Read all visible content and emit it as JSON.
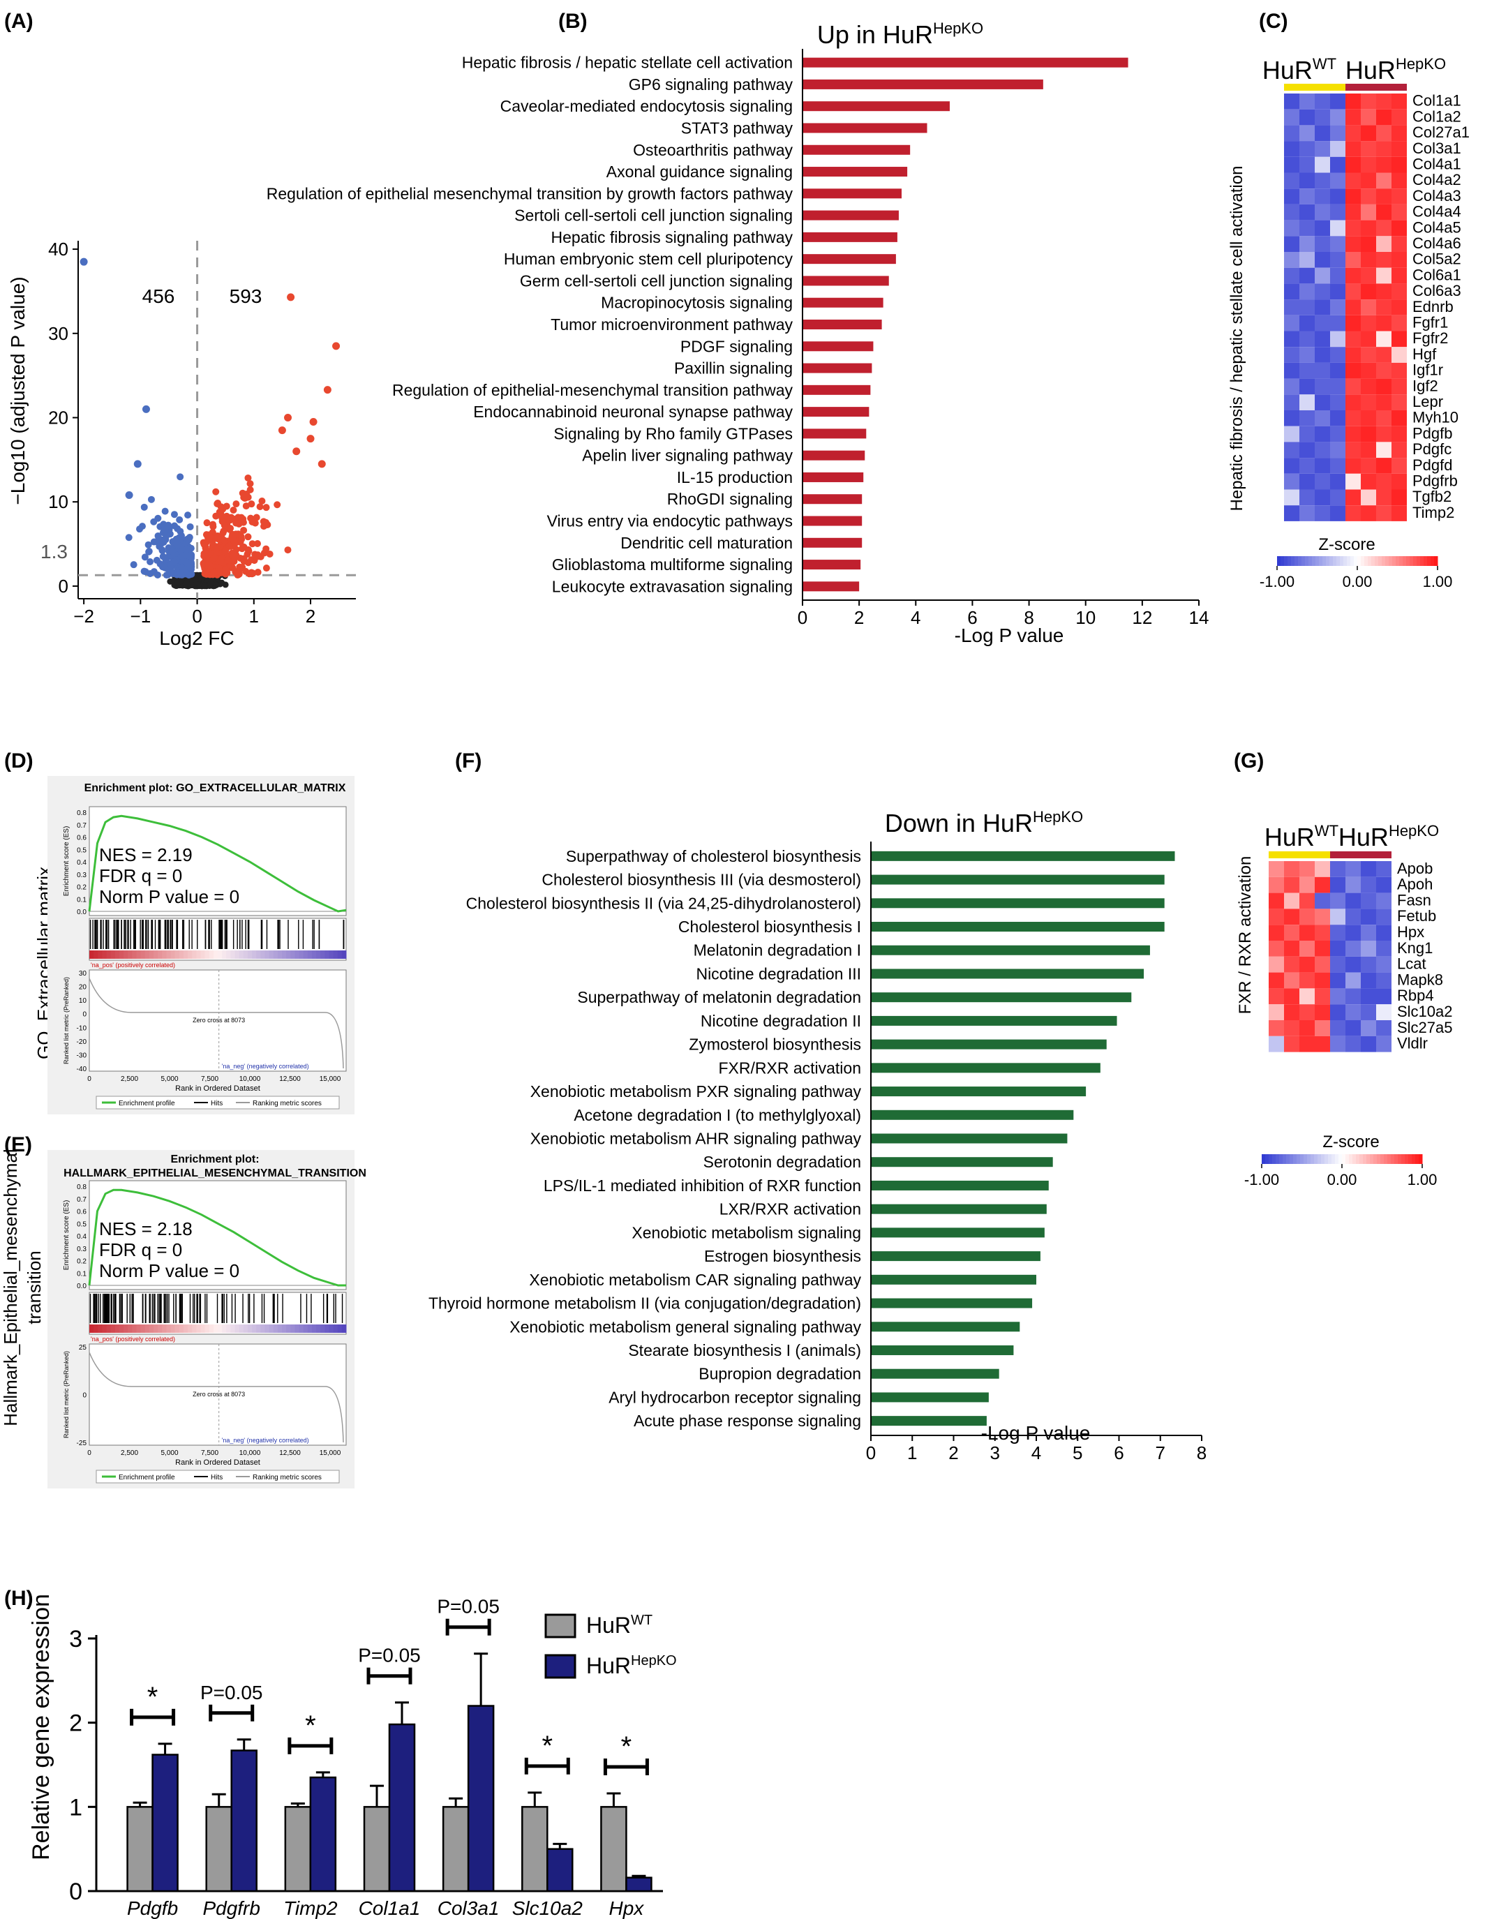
{
  "colors": {
    "up_bar": "#C0202E",
    "down_bar": "#1F6B35",
    "volcano_up": "#E8482F",
    "volcano_down": "#4A6EC0",
    "volcano_ns": "#222222",
    "gsea_green": "#3DBE3A",
    "wt_bar": "#9A9A9A",
    "ko_bar": "#1D1F7E",
    "wt_group": "#F5E000",
    "ko_group": "#B3203A"
  },
  "panel_labels": [
    "(A)",
    "(B)",
    "(C)",
    "(D)",
    "(E)",
    "(F)",
    "(G)",
    "(H)"
  ],
  "chart_data": [
    {
      "id": "A",
      "type": "scatter",
      "xlabel": "Log2 FC",
      "ylabel": "−Log10 (adjusted P value)",
      "xlim": [
        -2.1,
        2.8
      ],
      "ylim": [
        -1.5,
        41
      ],
      "xticks": [
        "−2",
        "−1",
        "0",
        "1",
        "2"
      ],
      "yticks": [
        "0",
        "10",
        "20",
        "30",
        "40"
      ],
      "threshold_label": "1.3",
      "count_down": "456",
      "count_up": "593",
      "outliers_down": [
        [
          -2.0,
          38.5
        ],
        [
          -0.9,
          21
        ],
        [
          -1.05,
          14.5
        ],
        [
          -1.2,
          10.8
        ]
      ],
      "outliers_up": [
        [
          1.65,
          34.3
        ],
        [
          2.45,
          28.5
        ],
        [
          2.3,
          23.3
        ],
        [
          1.6,
          20.0
        ],
        [
          2.05,
          19.5
        ],
        [
          1.5,
          18.5
        ],
        [
          2.0,
          17.5
        ],
        [
          1.75,
          16.0
        ],
        [
          2.2,
          14.5
        ]
      ]
    },
    {
      "id": "B",
      "type": "bar",
      "orientation": "horizontal",
      "title_main": "Up in HuR",
      "title_sup": "HepKO",
      "xlabel": "-Log P value",
      "xlim": [
        0,
        14
      ],
      "xticks": [
        "0",
        "2",
        "4",
        "6",
        "8",
        "10",
        "12",
        "14"
      ],
      "categories": [
        "Hepatic fibrosis / hepatic stellate cell activation",
        "GP6 signaling pathway",
        "Caveolar-mediated endocytosis signaling",
        "STAT3 pathway",
        "Osteoarthritis pathway",
        "Axonal guidance signaling",
        "Regulation of epithelial mesenchymal transition by growth factors pathway",
        "Sertoli cell-sertoli cell junction signaling",
        "Hepatic fibrosis signaling pathway",
        "Human embryonic stem cell pluripotency",
        "Germ cell-sertoli cell junction signaling",
        "Macropinocytosis signaling",
        "Tumor microenvironment pathway",
        "PDGF signaling",
        "Paxillin signaling",
        "Regulation of epithelial-mesenchymal transition pathway",
        "Endocannabinoid neuronal synapse pathway",
        "Signaling by Rho family GTPases",
        "Apelin liver signaling pathway",
        "IL-15 production",
        "RhoGDI signaling",
        "Virus entry via endocytic pathways",
        "Dendritic cell maturation",
        "Glioblastoma multiforme signaling",
        "Leukocyte extravasation signaling"
      ],
      "values": [
        11.5,
        8.5,
        5.2,
        4.4,
        3.8,
        3.7,
        3.5,
        3.4,
        3.35,
        3.3,
        3.05,
        2.85,
        2.8,
        2.5,
        2.45,
        2.4,
        2.35,
        2.25,
        2.2,
        2.15,
        2.1,
        2.1,
        2.1,
        2.05,
        2.0
      ]
    },
    {
      "id": "F",
      "type": "bar",
      "orientation": "horizontal",
      "title_main": "Down in HuR",
      "title_sup": "HepKO",
      "xlabel": "-Log P value",
      "xlim": [
        0,
        8
      ],
      "xticks": [
        "0",
        "1",
        "2",
        "3",
        "4",
        "5",
        "6",
        "7",
        "8"
      ],
      "categories": [
        "Superpathway of cholesterol biosynthesis",
        "Cholesterol biosynthesis III (via desmosterol)",
        "Cholesterol biosynthesis II (via 24,25-dihydrolanosterol)",
        "Cholesterol biosynthesis I",
        "Melatonin degradation I",
        "Nicotine degradation III",
        "Superpathway of melatonin degradation",
        "Nicotine degradation II",
        "Zymosterol biosynthesis",
        "FXR/RXR activation",
        "Xenobiotic metabolism PXR signaling pathway",
        "Acetone degradation I (to methylglyoxal)",
        "Xenobiotic metabolism AHR signaling pathway",
        "Serotonin degradation",
        "LPS/IL-1 mediated inhibition of RXR function",
        "LXR/RXR activation",
        "Xenobiotic metabolism signaling",
        "Estrogen biosynthesis",
        "Xenobiotic metabolism CAR signaling pathway",
        "Thyroid hormone metabolism II (via conjugation/degradation)",
        "Xenobiotic metabolism general signaling pathway",
        "Stearate biosynthesis I (animals)",
        "Bupropion degradation",
        "Aryl hydrocarbon receptor signaling",
        "Acute phase response signaling"
      ],
      "values": [
        7.35,
        7.1,
        7.1,
        7.1,
        6.75,
        6.6,
        6.3,
        5.95,
        5.7,
        5.55,
        5.2,
        4.9,
        4.75,
        4.4,
        4.3,
        4.25,
        4.2,
        4.1,
        4.0,
        3.9,
        3.6,
        3.45,
        3.1,
        2.85,
        2.8
      ]
    },
    {
      "id": "C",
      "type": "heatmap",
      "group_wt_main": "HuR",
      "group_wt_sup": "WT",
      "group_ko_main": "HuR",
      "group_ko_sup": "HepKO",
      "side_label": "Hepatic fibrosis / hepatic stellate cell activation",
      "legend_title": "Z-score",
      "legend_ticks": [
        "-1.00",
        "0.00",
        "1.00"
      ],
      "genes": [
        "Col1a1",
        "Col1a2",
        "Col27a1",
        "Col3a1",
        "Col4a1",
        "Col4a2",
        "Col4a3",
        "Col4a4",
        "Col4a5",
        "Col4a6",
        "Col5a2",
        "Col6a1",
        "Col6a3",
        "Ednrb",
        "Fgfr1",
        "Fgfr2",
        "Hgf",
        "Igf1r",
        "Igf2",
        "Lepr",
        "Myh10",
        "Pdgfb",
        "Pdgfc",
        "Pdgfd",
        "Pdgfrb",
        "Tgfb2",
        "Timp2"
      ],
      "z": [
        [
          -0.9,
          -0.7,
          -0.8,
          -0.9,
          0.95,
          0.8,
          0.85,
          0.9
        ],
        [
          -0.7,
          -0.9,
          -0.8,
          -0.6,
          0.9,
          0.7,
          0.95,
          0.85
        ],
        [
          -0.8,
          -0.6,
          -0.9,
          -0.7,
          0.85,
          0.95,
          0.75,
          0.9
        ],
        [
          -0.9,
          -0.8,
          -0.7,
          -0.3,
          0.9,
          0.8,
          0.85,
          0.9
        ],
        [
          -0.9,
          -0.8,
          -0.2,
          -0.9,
          0.95,
          0.85,
          0.9,
          0.95
        ],
        [
          -0.8,
          -0.9,
          -0.8,
          -0.7,
          0.85,
          0.9,
          0.6,
          0.9
        ],
        [
          -0.9,
          -0.7,
          -0.8,
          -0.9,
          0.95,
          0.8,
          0.9,
          0.85
        ],
        [
          -0.8,
          -0.9,
          -0.7,
          -0.8,
          0.9,
          0.6,
          0.95,
          0.8
        ],
        [
          -0.7,
          -0.8,
          -0.9,
          -0.2,
          0.85,
          0.9,
          0.8,
          0.95
        ],
        [
          -0.9,
          -0.6,
          -0.8,
          -0.7,
          0.9,
          0.95,
          0.3,
          0.85
        ],
        [
          -0.6,
          -0.4,
          -0.9,
          -0.8,
          0.7,
          0.9,
          0.85,
          0.9
        ],
        [
          -0.8,
          -0.9,
          -0.5,
          -0.8,
          0.9,
          0.85,
          0.2,
          0.9
        ],
        [
          -0.9,
          -0.7,
          -0.8,
          -0.9,
          0.8,
          0.95,
          0.9,
          0.85
        ],
        [
          -0.8,
          -0.8,
          -0.9,
          -0.7,
          0.9,
          0.7,
          0.85,
          0.9
        ],
        [
          -0.7,
          -0.9,
          -0.8,
          -0.8,
          0.95,
          0.85,
          0.9,
          0.8
        ],
        [
          -0.9,
          -0.8,
          -0.9,
          -0.3,
          0.85,
          0.9,
          0.1,
          0.95
        ],
        [
          -0.8,
          -0.7,
          -0.9,
          -0.8,
          0.9,
          0.8,
          0.85,
          0.2
        ],
        [
          -0.9,
          -0.8,
          -0.8,
          -0.9,
          0.95,
          0.9,
          0.8,
          0.85
        ],
        [
          -0.7,
          -0.9,
          -0.8,
          -0.8,
          0.8,
          0.9,
          0.95,
          0.85
        ],
        [
          -0.8,
          -0.2,
          -0.9,
          -0.8,
          0.9,
          0.85,
          0.9,
          0.8
        ],
        [
          -0.9,
          -0.8,
          -0.7,
          -0.9,
          0.85,
          0.9,
          0.8,
          0.95
        ],
        [
          -0.3,
          -0.8,
          -0.9,
          -0.8,
          0.9,
          0.95,
          0.85,
          0.9
        ],
        [
          -0.8,
          -0.9,
          -0.8,
          -0.7,
          0.85,
          0.9,
          0.1,
          0.85
        ],
        [
          -0.9,
          -0.8,
          -0.9,
          -0.8,
          0.9,
          0.85,
          0.95,
          0.8
        ],
        [
          -0.7,
          -0.9,
          -0.8,
          -0.9,
          0.1,
          0.9,
          0.85,
          0.9
        ],
        [
          -0.2,
          -0.8,
          -0.9,
          -0.8,
          0.9,
          0.2,
          0.85,
          0.95
        ],
        [
          -0.9,
          -0.7,
          -0.8,
          -0.9,
          0.85,
          0.9,
          0.8,
          0.9
        ]
      ]
    },
    {
      "id": "G",
      "type": "heatmap",
      "group_wt_main": "HuR",
      "group_wt_sup": "WT",
      "group_ko_main": "HuR",
      "group_ko_sup": "HepKO",
      "side_label": "FXR / RXR activation",
      "legend_title": "Z-score",
      "legend_ticks": [
        "-1.00",
        "0.00",
        "1.00"
      ],
      "genes": [
        "Apob",
        "Apoh",
        "Fasn",
        "Fetub",
        "Hpx",
        "Kng1",
        "Lcat",
        "Mapk8",
        "Rbp4",
        "Slc10a2",
        "Slc27a5",
        "Vldlr"
      ],
      "z": [
        [
          0.5,
          0.7,
          0.6,
          0.3,
          -0.8,
          -0.7,
          -0.9,
          -0.8
        ],
        [
          0.6,
          0.8,
          0.5,
          0.9,
          -0.9,
          -0.6,
          -0.8,
          -0.9
        ],
        [
          0.9,
          0.3,
          0.8,
          -0.8,
          -0.7,
          -0.9,
          -0.8,
          -0.7
        ],
        [
          0.8,
          0.9,
          0.7,
          0.6,
          -0.3,
          -0.8,
          -0.9,
          -0.8
        ],
        [
          0.9,
          0.7,
          0.9,
          0.8,
          -0.8,
          -0.9,
          -0.7,
          -0.9
        ],
        [
          0.7,
          0.9,
          0.6,
          0.9,
          -0.9,
          -0.7,
          -0.5,
          -0.8
        ],
        [
          0.4,
          0.8,
          0.9,
          0.7,
          -0.8,
          -0.9,
          -0.8,
          -0.7
        ],
        [
          0.9,
          0.6,
          0.8,
          0.9,
          -0.9,
          -0.5,
          -0.9,
          -0.8
        ],
        [
          0.8,
          0.9,
          0.2,
          0.8,
          -0.7,
          -0.8,
          -0.9,
          -0.9
        ],
        [
          0.3,
          0.9,
          0.8,
          0.9,
          -0.9,
          -0.7,
          -0.8,
          -0.1
        ],
        [
          0.7,
          0.8,
          0.9,
          0.6,
          -0.8,
          -0.9,
          -0.6,
          -0.8
        ],
        [
          -0.3,
          0.8,
          0.9,
          0.9,
          -0.7,
          -0.8,
          -0.9,
          -0.7
        ]
      ]
    },
    {
      "id": "D",
      "type": "line",
      "title": "Enrichment plot: GO_EXTRACELLULAR_MATRIX",
      "side_label": "GO_Extracellular matrix",
      "stats": [
        "NES = 2.19",
        "FDR q = 0",
        "Norm P value = 0"
      ],
      "ylabel_es": "Enrichment score (ES)",
      "ylabel_rank": "Ranked list metric (PreRanked)",
      "xlabel": "Rank in Ordered Dataset",
      "pos_label": "'na_pos' (positively correlated)",
      "neg_label": "'na_neg' (negatively correlated)",
      "zero_cross": "Zero cross at 8073",
      "legend": [
        "Enrichment profile",
        "Hits",
        "Ranking metric scores"
      ],
      "es_ticks": [
        "0.8",
        "0.7",
        "0.6",
        "0.5",
        "0.4",
        "0.3",
        "0.2",
        "0.1",
        "0.0"
      ],
      "rank_ticks": [
        "30",
        "20",
        "10",
        "0",
        "-10",
        "-20",
        "-30",
        "-40"
      ],
      "x_ticks": [
        "0",
        "2,500",
        "5,000",
        "7,500",
        "10,000",
        "12,500",
        "15,000"
      ],
      "es_x": [
        0,
        500,
        1000,
        1500,
        2000,
        3000,
        4000,
        5000,
        6000,
        7000,
        8000,
        9000,
        10000,
        11000,
        12000,
        13000,
        14000,
        15000,
        15500,
        16000
      ],
      "es_y": [
        0.0,
        0.55,
        0.72,
        0.76,
        0.77,
        0.75,
        0.72,
        0.69,
        0.65,
        0.6,
        0.54,
        0.47,
        0.4,
        0.32,
        0.24,
        0.16,
        0.09,
        0.03,
        0.0,
        0.01
      ],
      "hits_density": [
        1,
        1,
        1,
        0.9,
        0.8,
        0.7,
        0.6,
        0.55,
        0.5,
        0.45,
        0.4,
        0.35,
        0.3,
        0.25,
        0.2,
        0.15
      ]
    },
    {
      "id": "E",
      "type": "line",
      "title": "Enrichment plot:",
      "title2": "HALLMARK_EPITHELIAL_MESENCHYMAL_TRANSITION",
      "side_label": "Hallmark_Epithelial_mesenchymal",
      "side_label2": "transition",
      "stats": [
        "NES = 2.18",
        "FDR q = 0",
        "Norm P value = 0"
      ],
      "ylabel_es": "Enrichment score (ES)",
      "ylabel_rank": "Ranked list metric (PreRanked)",
      "xlabel": "Rank in Ordered Dataset",
      "pos_label": "'na_pos' (positively correlated)",
      "neg_label": "'na_neg' (negatively correlated)",
      "zero_cross": "Zero cross at 8073",
      "legend": [
        "Enrichment profile",
        "Hits",
        "Ranking metric scores"
      ],
      "es_ticks": [
        "0.8",
        "0.7",
        "0.6",
        "0.5",
        "0.4",
        "0.3",
        "0.2",
        "0.1",
        "0.0"
      ],
      "rank_ticks": [
        "25",
        "0",
        "-25"
      ],
      "x_ticks": [
        "0",
        "2,500",
        "5,000",
        "7,500",
        "10,000",
        "12,500",
        "15,000"
      ],
      "es_x": [
        0,
        500,
        1000,
        1500,
        2000,
        3000,
        4000,
        5000,
        6000,
        7000,
        8000,
        9000,
        10000,
        11000,
        12000,
        13000,
        14000,
        15000,
        15500,
        16000
      ],
      "es_y": [
        0.0,
        0.6,
        0.74,
        0.77,
        0.77,
        0.75,
        0.72,
        0.68,
        0.63,
        0.57,
        0.5,
        0.43,
        0.35,
        0.27,
        0.19,
        0.12,
        0.06,
        0.02,
        0.0,
        0.0
      ],
      "hits_density": [
        1,
        1,
        0.95,
        0.85,
        0.75,
        0.65,
        0.55,
        0.5,
        0.45,
        0.4,
        0.35,
        0.3,
        0.25,
        0.2,
        0.15,
        0.1
      ]
    },
    {
      "id": "H",
      "type": "bar",
      "ylabel": "Relative gene expression",
      "ylim": [
        0,
        3
      ],
      "yticks": [
        "0",
        "1",
        "2",
        "3"
      ],
      "categories": [
        "Pdgfb",
        "Pdgfrb",
        "Timp2",
        "Col1a1",
        "Col3a1",
        "Slc10a2",
        "Hpx"
      ],
      "series": [
        {
          "name_main": "HuR",
          "name_sup": "WT",
          "values": [
            1.0,
            1.0,
            1.0,
            1.0,
            1.0,
            1.0,
            1.0
          ],
          "errors": [
            0.05,
            0.15,
            0.04,
            0.25,
            0.1,
            0.17,
            0.16
          ]
        },
        {
          "name_main": "HuR",
          "name_sup": "HepKO",
          "values": [
            1.62,
            1.67,
            1.35,
            1.98,
            2.2,
            0.5,
            0.16
          ],
          "errors": [
            0.13,
            0.13,
            0.06,
            0.26,
            0.62,
            0.06,
            0.02
          ]
        }
      ],
      "significance": [
        "*",
        "P=0.05",
        "*",
        "P=0.05",
        "P=0.05",
        "*",
        "*"
      ]
    }
  ]
}
